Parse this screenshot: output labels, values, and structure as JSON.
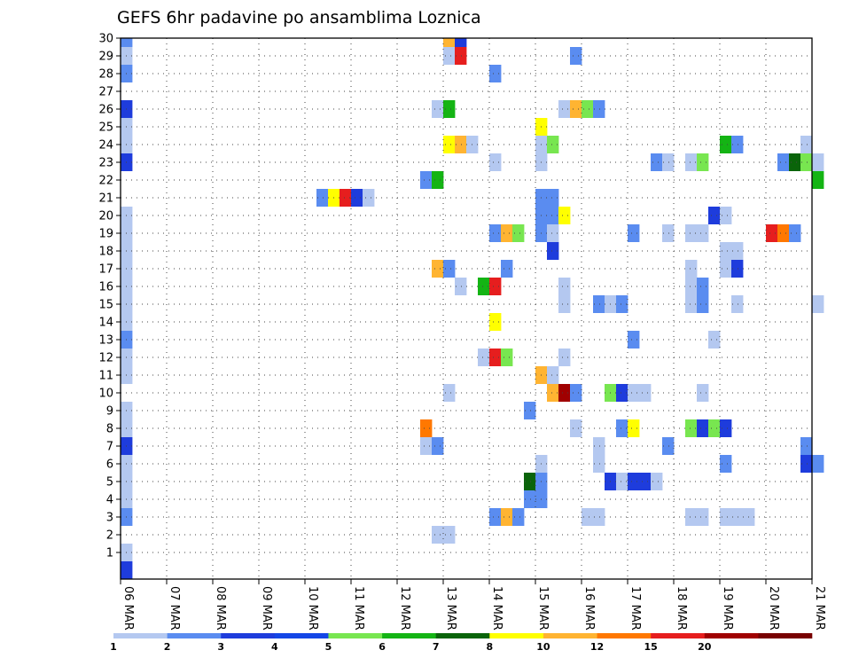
{
  "chart_data": {
    "type": "heatmap",
    "title": "GEFS 6hr padavine po ansamblima Loznica",
    "xlabel": "",
    "ylabel": "",
    "x_tick_labels": [
      "06 MAR",
      "07 MAR",
      "08 MAR",
      "09 MAR",
      "10 MAR",
      "11 MAR",
      "12 MAR",
      "13 MAR",
      "14 MAR",
      "15 MAR",
      "16 MAR",
      "17 MAR",
      "18 MAR",
      "19 MAR",
      "20 MAR",
      "21 MAR"
    ],
    "x_range_days": [
      0,
      15
    ],
    "y_tick_labels": [
      "1",
      "2",
      "3",
      "4",
      "5",
      "6",
      "7",
      "8",
      "9",
      "10",
      "11",
      "12",
      "13",
      "14",
      "15",
      "16",
      "17",
      "18",
      "19",
      "20",
      "21",
      "22",
      "23",
      "24",
      "25",
      "26",
      "27",
      "28",
      "29",
      "30"
    ],
    "y_range": [
      0.5,
      30.5
    ],
    "grid": true,
    "legend": {
      "placement": "bottom",
      "labels": [
        "1",
        "2",
        "3",
        "4",
        "5",
        "6",
        "7",
        "8",
        "10",
        "12",
        "15",
        "20"
      ],
      "colors": [
        "#b4c8f0",
        "#5a8cf0",
        "#1e3cdc",
        "#1446e6",
        "#78e650",
        "#14b414",
        "#0a640a",
        "#ffff00",
        "#ffb432",
        "#ff7800",
        "#e61e1e",
        "#a00000",
        "#780000"
      ]
    },
    "palette": {
      "1": "#b4c8f0",
      "2": "#5a8cf0",
      "3": "#1e3cdc",
      "5": "#78e650",
      "6": "#14b414",
      "7": "#0a640a",
      "8": "#ffff00",
      "10": "#ffb432",
      "12": "#ff7800",
      "15": "#e61e1e",
      "20": "#a00000"
    },
    "series_note": "cells: [member, step_index (6h steps from 06 MAR 00z), precip_bin]",
    "cells": [
      [
        30,
        0,
        2
      ],
      [
        29,
        0,
        1
      ],
      [
        28,
        0,
        2
      ],
      [
        26,
        0,
        3
      ],
      [
        25,
        0,
        1
      ],
      [
        24,
        0,
        1
      ],
      [
        23,
        0,
        3
      ],
      [
        20,
        0,
        1
      ],
      [
        19,
        0,
        1
      ],
      [
        18,
        0,
        1
      ],
      [
        17,
        0,
        1
      ],
      [
        16,
        0,
        1
      ],
      [
        15,
        0,
        1
      ],
      [
        14,
        0,
        1
      ],
      [
        13,
        0,
        2
      ],
      [
        12,
        0,
        1
      ],
      [
        11,
        0,
        1
      ],
      [
        9,
        0,
        1
      ],
      [
        8,
        0,
        1
      ],
      [
        7,
        0,
        3
      ],
      [
        6,
        0,
        1
      ],
      [
        5,
        0,
        1
      ],
      [
        4,
        0,
        1
      ],
      [
        3,
        0,
        2
      ],
      [
        1,
        0,
        1
      ],
      [
        0,
        0,
        3
      ],
      [
        21,
        17,
        2
      ],
      [
        21,
        18,
        8
      ],
      [
        21,
        19,
        15
      ],
      [
        21,
        20,
        3
      ],
      [
        21,
        21,
        1
      ],
      [
        30,
        28,
        10
      ],
      [
        30,
        29,
        3
      ],
      [
        29,
        28,
        1
      ],
      [
        29,
        29,
        15
      ],
      [
        26,
        27,
        1
      ],
      [
        26,
        28,
        6
      ],
      [
        24,
        28,
        8
      ],
      [
        24,
        29,
        10
      ],
      [
        24,
        30,
        1
      ],
      [
        22,
        26,
        2
      ],
      [
        22,
        27,
        6
      ],
      [
        17,
        27,
        10
      ],
      [
        17,
        28,
        2
      ],
      [
        16,
        29,
        1
      ],
      [
        10,
        28,
        1
      ],
      [
        8,
        26,
        12
      ],
      [
        7,
        26,
        1
      ],
      [
        7,
        27,
        2
      ],
      [
        2,
        27,
        1
      ],
      [
        2,
        28,
        1
      ],
      [
        28,
        32,
        2
      ],
      [
        23,
        32,
        1
      ],
      [
        19,
        32,
        2
      ],
      [
        19,
        33,
        10
      ],
      [
        19,
        34,
        5
      ],
      [
        17,
        33,
        2
      ],
      [
        16,
        31,
        6
      ],
      [
        16,
        32,
        15
      ],
      [
        14,
        32,
        8
      ],
      [
        12,
        31,
        1
      ],
      [
        12,
        32,
        15
      ],
      [
        12,
        33,
        5
      ],
      [
        9,
        35,
        2
      ],
      [
        3,
        32,
        2
      ],
      [
        3,
        33,
        10
      ],
      [
        3,
        34,
        2
      ],
      [
        29,
        39,
        2
      ],
      [
        26,
        38,
        1
      ],
      [
        26,
        39,
        10
      ],
      [
        26,
        40,
        5
      ],
      [
        26,
        41,
        2
      ],
      [
        25,
        36,
        8
      ],
      [
        24,
        36,
        1
      ],
      [
        24,
        37,
        5
      ],
      [
        23,
        36,
        1
      ],
      [
        21,
        36,
        2
      ],
      [
        21,
        37,
        2
      ],
      [
        20,
        36,
        2
      ],
      [
        20,
        37,
        2
      ],
      [
        20,
        38,
        8
      ],
      [
        19,
        36,
        2
      ],
      [
        19,
        37,
        1
      ],
      [
        18,
        37,
        3
      ],
      [
        16,
        38,
        1
      ],
      [
        15,
        38,
        1
      ],
      [
        15,
        41,
        2
      ],
      [
        15,
        42,
        1
      ],
      [
        15,
        43,
        2
      ],
      [
        12,
        38,
        1
      ],
      [
        11,
        36,
        10
      ],
      [
        11,
        37,
        1
      ],
      [
        10,
        37,
        10
      ],
      [
        10,
        38,
        20
      ],
      [
        10,
        39,
        2
      ],
      [
        10,
        42,
        5
      ],
      [
        10,
        43,
        3
      ],
      [
        10,
        44,
        1
      ],
      [
        10,
        45,
        1
      ],
      [
        8,
        39,
        1
      ],
      [
        8,
        43,
        2
      ],
      [
        8,
        44,
        8
      ],
      [
        7,
        41,
        1
      ],
      [
        6,
        36,
        1
      ],
      [
        6,
        41,
        1
      ],
      [
        5,
        35,
        7
      ],
      [
        5,
        36,
        2
      ],
      [
        5,
        42,
        3
      ],
      [
        5,
        43,
        1
      ],
      [
        5,
        44,
        3
      ],
      [
        5,
        45,
        3
      ],
      [
        5,
        46,
        1
      ],
      [
        4,
        35,
        2
      ],
      [
        4,
        36,
        2
      ],
      [
        3,
        40,
        1
      ],
      [
        3,
        41,
        1
      ],
      [
        23,
        46,
        2
      ],
      [
        23,
        47,
        1
      ],
      [
        23,
        49,
        1
      ],
      [
        23,
        50,
        5
      ],
      [
        24,
        52,
        6
      ],
      [
        24,
        53,
        2
      ],
      [
        23,
        57,
        2
      ],
      [
        23,
        58,
        7
      ],
      [
        23,
        59,
        5
      ],
      [
        23,
        60,
        1
      ],
      [
        22,
        60,
        6
      ],
      [
        24,
        59,
        1
      ],
      [
        20,
        51,
        3
      ],
      [
        20,
        52,
        1
      ],
      [
        19,
        44,
        2
      ],
      [
        19,
        47,
        1
      ],
      [
        19,
        49,
        1
      ],
      [
        19,
        50,
        1
      ],
      [
        19,
        56,
        15
      ],
      [
        19,
        57,
        12
      ],
      [
        19,
        58,
        2
      ],
      [
        18,
        52,
        1
      ],
      [
        18,
        53,
        1
      ],
      [
        17,
        49,
        1
      ],
      [
        17,
        52,
        1
      ],
      [
        17,
        53,
        3
      ],
      [
        16,
        49,
        1
      ],
      [
        16,
        50,
        2
      ],
      [
        15,
        49,
        1
      ],
      [
        15,
        50,
        2
      ],
      [
        15,
        53,
        1
      ],
      [
        15,
        60,
        1
      ],
      [
        13,
        44,
        2
      ],
      [
        13,
        51,
        1
      ],
      [
        10,
        50,
        1
      ],
      [
        8,
        49,
        5
      ],
      [
        8,
        50,
        3
      ],
      [
        8,
        51,
        5
      ],
      [
        8,
        52,
        3
      ],
      [
        7,
        47,
        2
      ],
      [
        7,
        59,
        2
      ],
      [
        6,
        52,
        2
      ],
      [
        6,
        59,
        3
      ],
      [
        6,
        60,
        2
      ],
      [
        3,
        49,
        1
      ],
      [
        3,
        50,
        1
      ],
      [
        3,
        52,
        1
      ],
      [
        3,
        53,
        1
      ],
      [
        3,
        54,
        1
      ]
    ]
  }
}
